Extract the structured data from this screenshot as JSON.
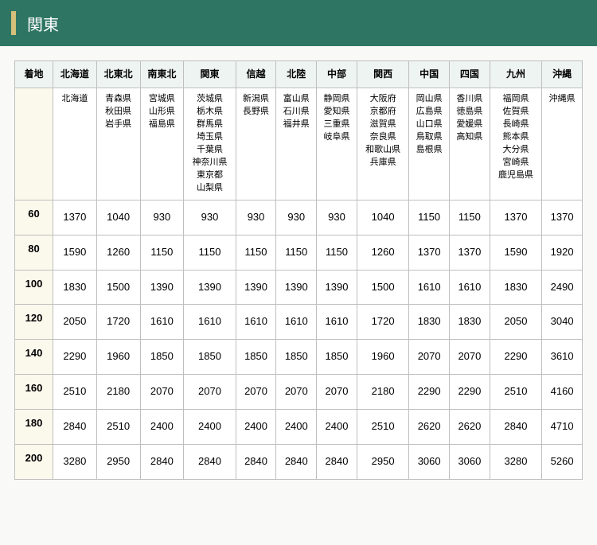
{
  "header": {
    "title": "関東"
  },
  "table": {
    "corner_label": "着地",
    "columns": [
      {
        "label": "北海道",
        "sub": [
          "北海道"
        ]
      },
      {
        "label": "北東北",
        "sub": [
          "青森県",
          "秋田県",
          "岩手県"
        ]
      },
      {
        "label": "南東北",
        "sub": [
          "宮城県",
          "山形県",
          "福島県"
        ]
      },
      {
        "label": "関東",
        "sub": [
          "茨城県",
          "栃木県",
          "群馬県",
          "埼玉県",
          "千葉県",
          "神奈川県",
          "東京都",
          "山梨県"
        ]
      },
      {
        "label": "信越",
        "sub": [
          "新潟県",
          "長野県"
        ]
      },
      {
        "label": "北陸",
        "sub": [
          "富山県",
          "石川県",
          "福井県"
        ]
      },
      {
        "label": "中部",
        "sub": [
          "静岡県",
          "愛知県",
          "三重県",
          "岐阜県"
        ]
      },
      {
        "label": "関西",
        "sub": [
          "大阪府",
          "京都府",
          "滋賀県",
          "奈良県",
          "和歌山県",
          "兵庫県"
        ]
      },
      {
        "label": "中国",
        "sub": [
          "岡山県",
          "広島県",
          "山口県",
          "鳥取県",
          "島根県"
        ]
      },
      {
        "label": "四国",
        "sub": [
          "香川県",
          "徳島県",
          "愛媛県",
          "高知県"
        ]
      },
      {
        "label": "九州",
        "sub": [
          "福岡県",
          "佐賀県",
          "長崎県",
          "熊本県",
          "大分県",
          "宮崎県",
          "鹿児島県"
        ]
      },
      {
        "label": "沖縄",
        "sub": [
          "沖縄県"
        ]
      }
    ],
    "rows": [
      {
        "size": "60",
        "values": [
          1370,
          1040,
          930,
          930,
          930,
          930,
          930,
          1040,
          1150,
          1150,
          1370,
          1370
        ]
      },
      {
        "size": "80",
        "values": [
          1590,
          1260,
          1150,
          1150,
          1150,
          1150,
          1150,
          1260,
          1370,
          1370,
          1590,
          1920
        ]
      },
      {
        "size": "100",
        "values": [
          1830,
          1500,
          1390,
          1390,
          1390,
          1390,
          1390,
          1500,
          1610,
          1610,
          1830,
          2490
        ]
      },
      {
        "size": "120",
        "values": [
          2050,
          1720,
          1610,
          1610,
          1610,
          1610,
          1610,
          1720,
          1830,
          1830,
          2050,
          3040
        ]
      },
      {
        "size": "140",
        "values": [
          2290,
          1960,
          1850,
          1850,
          1850,
          1850,
          1850,
          1960,
          2070,
          2070,
          2290,
          3610
        ]
      },
      {
        "size": "160",
        "values": [
          2510,
          2180,
          2070,
          2070,
          2070,
          2070,
          2070,
          2180,
          2290,
          2290,
          2510,
          4160
        ]
      },
      {
        "size": "180",
        "values": [
          2840,
          2510,
          2400,
          2400,
          2400,
          2400,
          2400,
          2510,
          2620,
          2620,
          2840,
          4710
        ]
      },
      {
        "size": "200",
        "values": [
          3280,
          2950,
          2840,
          2840,
          2840,
          2840,
          2840,
          2950,
          3060,
          3060,
          3280,
          5260
        ]
      }
    ]
  },
  "colors": {
    "header_bg": "#2f7564",
    "header_bar": "#d4c07a",
    "th_bg": "#eef4f2",
    "size_bg": "#fbf8ec",
    "border": "#bfbfbf"
  }
}
